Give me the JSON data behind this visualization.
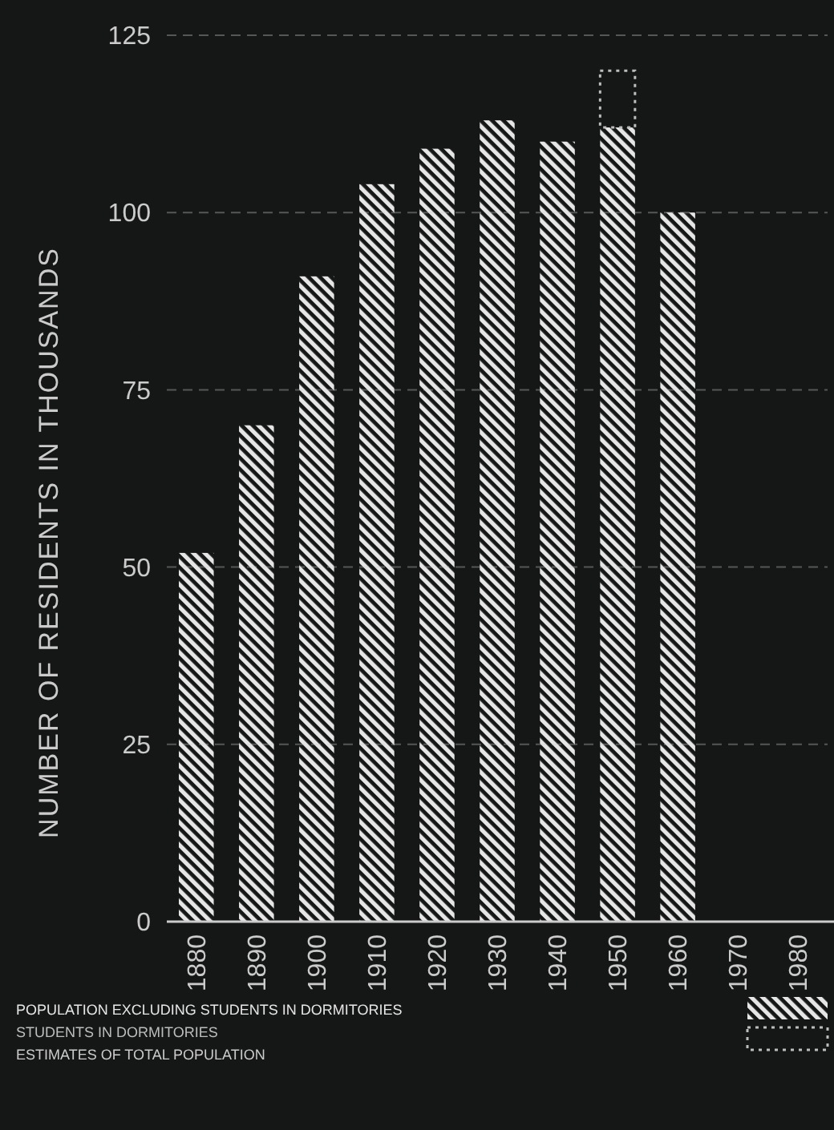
{
  "chart_data": {
    "type": "bar",
    "ylabel": "NUMBER OF RESIDENTS IN THOUSANDS",
    "categories": [
      "1880",
      "1890",
      "1900",
      "1910",
      "1920",
      "1930",
      "1940",
      "1950",
      "1960",
      "1970",
      "1980"
    ],
    "series": [
      {
        "name": "POPULATION EXCLUDING STUDENTS IN DORMITORIES",
        "color": "#e6e6e6",
        "values": [
          52,
          70,
          91,
          104,
          109,
          113,
          110,
          112,
          100,
          null,
          null
        ]
      },
      {
        "name": "STUDENTS IN DORMITORIES",
        "color": "#bdbdbd",
        "values": [
          null,
          null,
          null,
          null,
          null,
          null,
          null,
          8,
          null,
          null,
          null
        ]
      }
    ],
    "stacked": true,
    "ylim": [
      0,
      125
    ],
    "yticks": [
      0,
      25,
      50,
      75,
      100,
      125
    ],
    "grid": "y",
    "legend": "bottom",
    "annotations": [
      "ESTIMATES OF TOTAL POPULATION"
    ]
  }
}
